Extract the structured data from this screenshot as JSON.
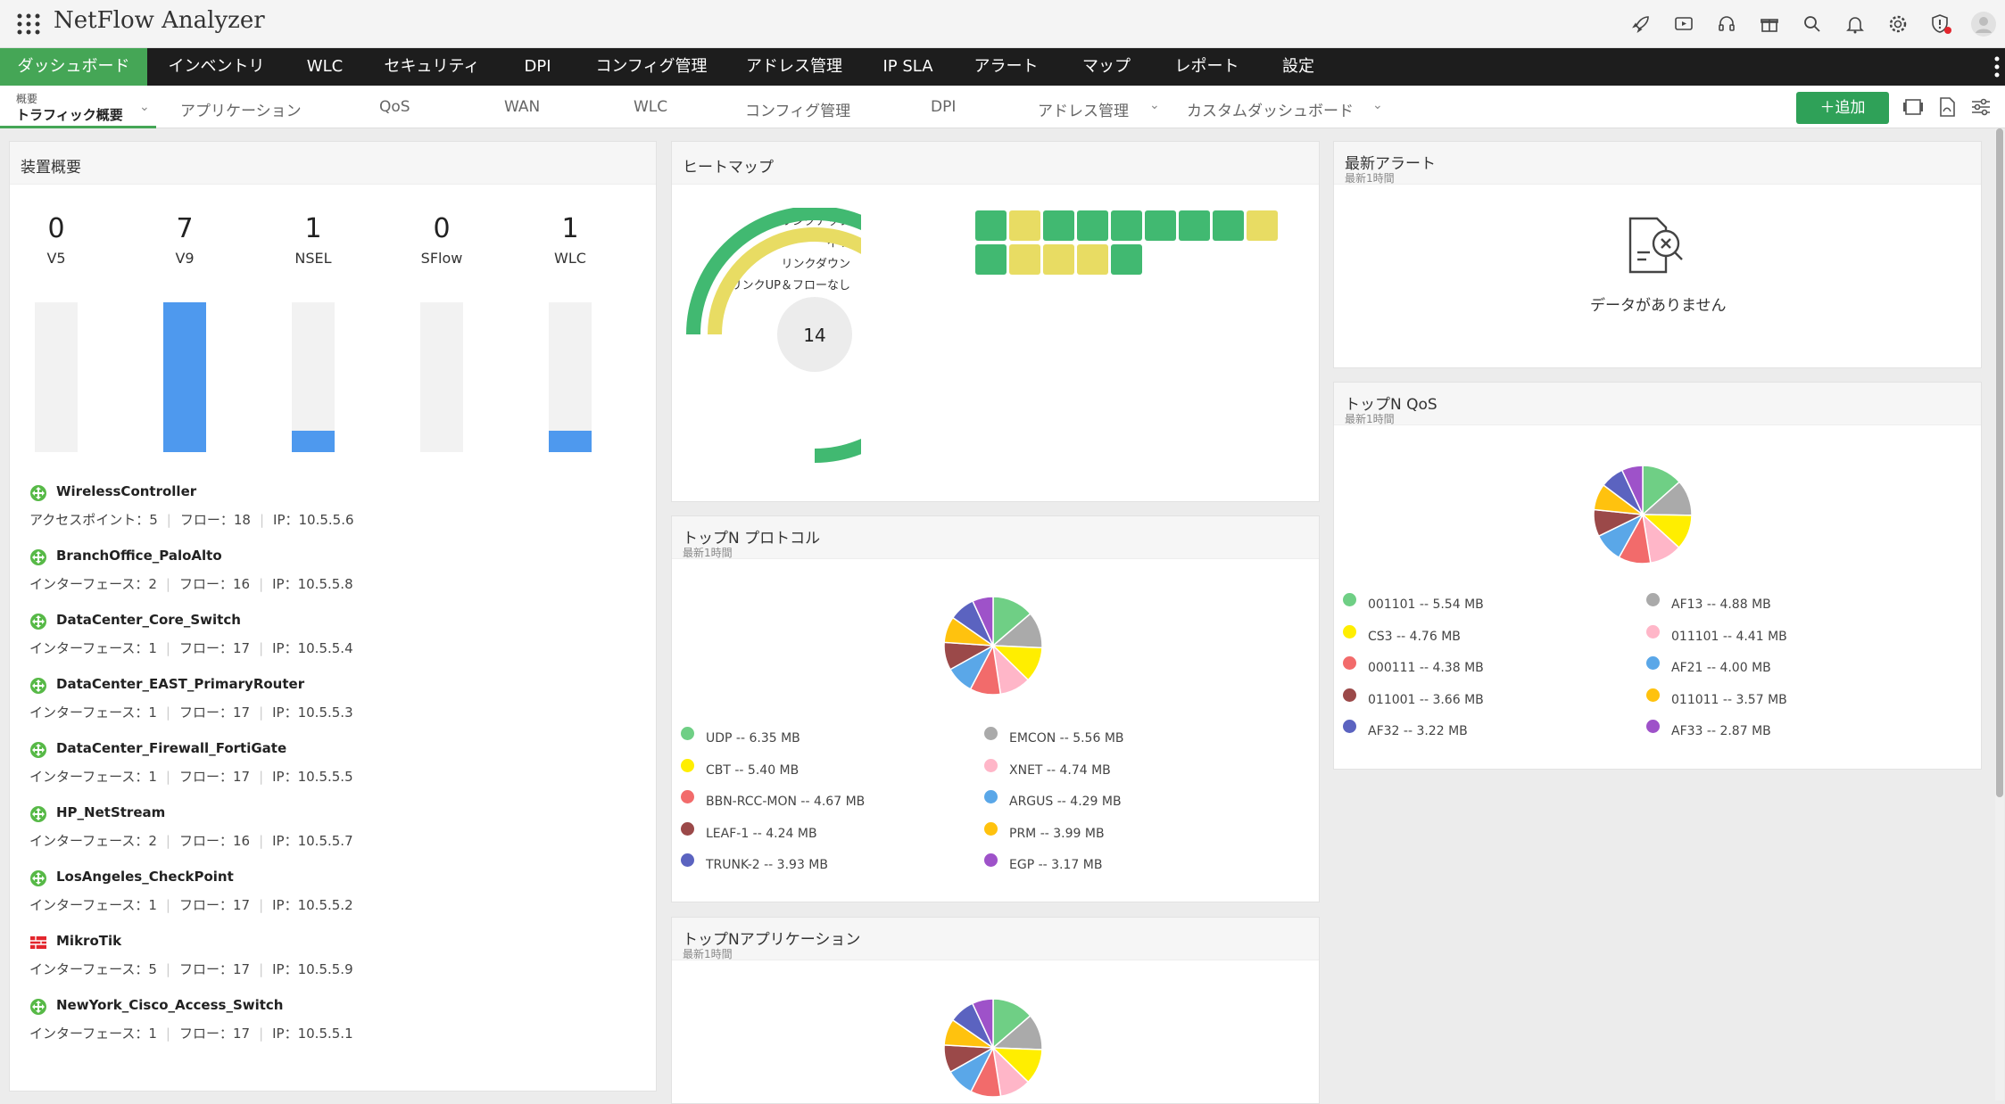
{
  "app": {
    "title": "NetFlow Analyzer"
  },
  "top_icons": [
    "rocket-icon",
    "video-icon",
    "headset-icon",
    "gift-icon",
    "search-icon",
    "bell-icon",
    "gear-icon",
    "shield-alert-icon",
    "user-avatar-icon"
  ],
  "nav": {
    "items": [
      "ダッシュボード",
      "インベントリ",
      "WLC",
      "セキュリティ",
      "DPI",
      "コンフィグ管理",
      "アドレス管理",
      "IP SLA",
      "アラート",
      "マップ",
      "レポート",
      "設定"
    ],
    "active": 0,
    "active_color": "#45a656"
  },
  "subnav": {
    "first_small": "概要",
    "first_main": "トラフィック概要",
    "items": [
      "アプリケーション",
      "QoS",
      "WAN",
      "WLC",
      "コンフィグ管理",
      "DPI",
      "アドレス管理",
      "カスタムダッシュボード"
    ],
    "add_label": "＋追加"
  },
  "device_panel": {
    "title": "装置概要",
    "counts": [
      {
        "label": "V5",
        "value": "0",
        "fill": 0
      },
      {
        "label": "V9",
        "value": "7",
        "fill": 1.0
      },
      {
        "label": "NSEL",
        "value": "1",
        "fill": 0.14
      },
      {
        "label": "SFlow",
        "value": "0",
        "fill": 0
      },
      {
        "label": "WLC",
        "value": "1",
        "fill": 0.14
      }
    ],
    "devices": [
      {
        "name": "WirelessController",
        "k": "アクセスポイント：5",
        "flow": "フロー：18",
        "ip": "IP：10.5.5.6",
        "icon": "green"
      },
      {
        "name": "BranchOffice_PaloAlto",
        "k": "インターフェース：2",
        "flow": "フロー：16",
        "ip": "IP：10.5.5.8",
        "icon": "green"
      },
      {
        "name": "DataCenter_Core_Switch",
        "k": "インターフェース：1",
        "flow": "フロー：17",
        "ip": "IP：10.5.5.4",
        "icon": "green"
      },
      {
        "name": "DataCenter_EAST_PrimaryRouter",
        "k": "インターフェース：1",
        "flow": "フロー：17",
        "ip": "IP：10.5.5.3",
        "icon": "green"
      },
      {
        "name": "DataCenter_Firewall_FortiGate",
        "k": "インターフェース：1",
        "flow": "フロー：17",
        "ip": "IP：10.5.5.5",
        "icon": "green"
      },
      {
        "name": "HP_NetStream",
        "k": "インターフェース：2",
        "flow": "フロー：16",
        "ip": "IP：10.5.5.7",
        "icon": "green"
      },
      {
        "name": "LosAngeles_CheckPoint",
        "k": "インターフェース：1",
        "flow": "フロー：17",
        "ip": "IP：10.5.5.2",
        "icon": "green"
      },
      {
        "name": "MikroTik",
        "k": "インターフェース：5",
        "flow": "フロー：17",
        "ip": "IP：10.5.5.9",
        "icon": "firewall"
      },
      {
        "name": "NewYork_Cisco_Access_Switch",
        "k": "インターフェース：1",
        "flow": "フロー：17",
        "ip": "IP：10.5.5.1",
        "icon": "green"
      }
    ]
  },
  "heatmap": {
    "title": "ヒートマップ",
    "labels": [
      "リンクアップ",
      "不明",
      "リンクダウン",
      "リンクUP＆フローなし"
    ],
    "total": "14",
    "rings": [
      {
        "name": "リンクアップ",
        "fraction": 0.75,
        "color": "#41b971"
      },
      {
        "name": "不明",
        "fraction": 0.35,
        "color": "#e8dc63"
      }
    ],
    "cells_row1": [
      "g",
      "y",
      "g",
      "g",
      "g",
      "g",
      "g",
      "g",
      "y"
    ],
    "cells_row2": [
      "g",
      "y",
      "y",
      "y",
      "g"
    ],
    "colors": {
      "g": "#41b971",
      "y": "#e8dc63"
    }
  },
  "protocols": {
    "title": "トップN プロトコル",
    "subtitle": "最新1時間",
    "items": [
      {
        "label": "UDP -- 6.35 MB",
        "value": 6.35,
        "color": "#6fcf85"
      },
      {
        "label": "EMCON -- 5.56 MB",
        "value": 5.56,
        "color": "#aaaaaa"
      },
      {
        "label": "CBT -- 5.40 MB",
        "value": 5.4,
        "color": "#ffee00"
      },
      {
        "label": "XNET -- 4.74 MB",
        "value": 4.74,
        "color": "#ffb6c8"
      },
      {
        "label": "BBN-RCC-MON -- 4.67 MB",
        "value": 4.67,
        "color": "#f26b6b"
      },
      {
        "label": "ARGUS -- 4.29 MB",
        "value": 4.29,
        "color": "#5aa7e8"
      },
      {
        "label": "LEAF-1 -- 4.24 MB",
        "value": 4.24,
        "color": "#9b4949"
      },
      {
        "label": "PRM -- 3.99 MB",
        "value": 3.99,
        "color": "#ffc20e"
      },
      {
        "label": "TRUNK-2 -- 3.93 MB",
        "value": 3.93,
        "color": "#5b63c0"
      },
      {
        "label": "EGP -- 3.17 MB",
        "value": 3.17,
        "color": "#9e52c9"
      }
    ]
  },
  "applications": {
    "title": "トップNアプリケーション",
    "subtitle": "最新1時間",
    "values": [
      6.3,
      5.5,
      5.4,
      4.7,
      4.6,
      4.3,
      4.2,
      4.0,
      3.9,
      3.2
    ],
    "colors": [
      "#6fcf85",
      "#aaaaaa",
      "#ffee00",
      "#ffb6c8",
      "#f26b6b",
      "#5aa7e8",
      "#9b4949",
      "#ffc20e",
      "#5b63c0",
      "#9e52c9"
    ]
  },
  "alerts": {
    "title": "最新アラート",
    "subtitle": "最新1時間",
    "no_data": "データがありません"
  },
  "qos": {
    "title": "トップN QoS",
    "subtitle": "最新1時間",
    "items": [
      {
        "label": "001101 -- 5.54 MB",
        "value": 5.54,
        "color": "#6fcf85"
      },
      {
        "label": "AF13 -- 4.88 MB",
        "value": 4.88,
        "color": "#aaaaaa"
      },
      {
        "label": "CS3 -- 4.76 MB",
        "value": 4.76,
        "color": "#ffee00"
      },
      {
        "label": "011101 -- 4.41 MB",
        "value": 4.41,
        "color": "#ffb6c8"
      },
      {
        "label": "000111 -- 4.38 MB",
        "value": 4.38,
        "color": "#f26b6b"
      },
      {
        "label": "AF21 -- 4.00 MB",
        "value": 4.0,
        "color": "#5aa7e8"
      },
      {
        "label": "011001 -- 3.66 MB",
        "value": 3.66,
        "color": "#9b4949"
      },
      {
        "label": "011011 -- 3.57 MB",
        "value": 3.57,
        "color": "#ffc20e"
      },
      {
        "label": "AF32 -- 3.22 MB",
        "value": 3.22,
        "color": "#5b63c0"
      },
      {
        "label": "AF33 -- 2.87 MB",
        "value": 2.87,
        "color": "#9e52c9"
      }
    ]
  }
}
